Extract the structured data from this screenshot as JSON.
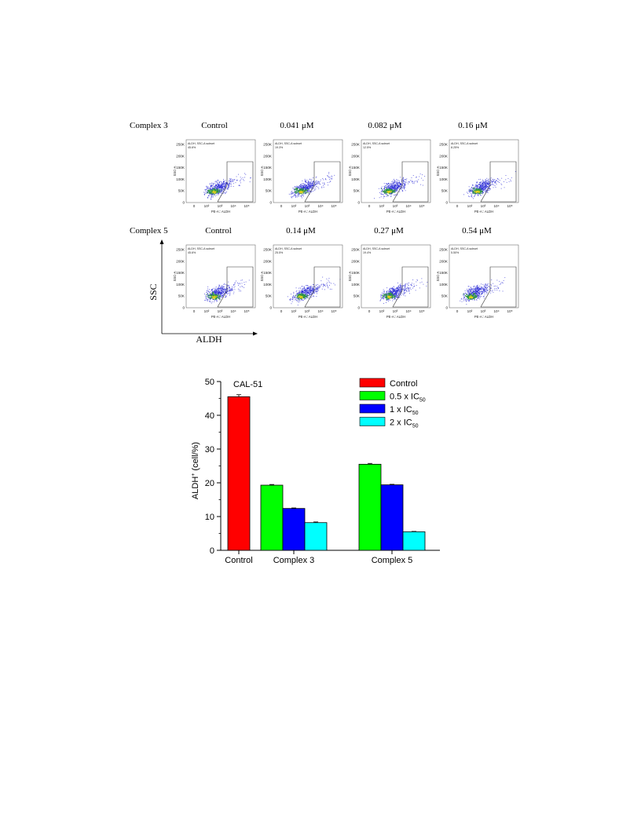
{
  "flow": {
    "rows": [
      {
        "label": "Complex 3",
        "panels": [
          {
            "title": "Control",
            "gate_label": "ALDH, SSC-A subset",
            "gate_pct": "45.6%"
          },
          {
            "title": "0.041 μM",
            "gate_label": "ALDH, SSC-A subset",
            "gate_pct": "19.3%"
          },
          {
            "title": "0.082 μM",
            "gate_label": "ALDH, SSC-A subset",
            "gate_pct": "12.5%"
          },
          {
            "title": "0.16 μM",
            "gate_label": "ALDH, SSC-A subset",
            "gate_pct": "8.25%"
          }
        ]
      },
      {
        "label": "Complex 5",
        "panels": [
          {
            "title": "Control",
            "gate_label": "ALDH, SSC-A subset",
            "gate_pct": "45.6%"
          },
          {
            "title": "0.14 μM",
            "gate_label": "ALDH, SSC-A subset",
            "gate_pct": "25.5%"
          },
          {
            "title": "0.27 μM",
            "gate_label": "ALDH, SSC-A subset",
            "gate_pct": "19.4%"
          },
          {
            "title": "0.54 μM",
            "gate_label": "ALDH, SSC-A subset",
            "gate_pct": "5.50%"
          }
        ]
      }
    ],
    "panel_xlabel": "PE-A:: ALDH",
    "panel_ylabel": "SSC-A",
    "y_ticks": [
      "250K",
      "200K",
      "150K",
      "100K",
      "50K",
      "0"
    ],
    "x_ticks": [
      "0",
      "10²",
      "10³",
      "10⁴",
      "10⁵"
    ],
    "global_ylabel": "SSC",
    "global_xlabel": "ALDH",
    "colors": {
      "dots": "#2b2bd6",
      "core": "#2e9b3a",
      "hot": "#e6d21e",
      "gate": "#333333"
    }
  },
  "chart_data": {
    "type": "bar",
    "title": "CAL-51",
    "ylabel": "ALDH",
    "ylabel_sup": "+",
    "ylabel_rest": " (cell/%)",
    "ylim": [
      0,
      50
    ],
    "yticks": [
      0,
      10,
      20,
      30,
      40,
      50
    ],
    "categories": [
      "Control",
      "Complex 3",
      "Complex 5"
    ],
    "groups": [
      {
        "category": "Control",
        "bars": [
          {
            "series": "Control",
            "value": 45.5,
            "err": 0.6
          }
        ]
      },
      {
        "category": "Complex 3",
        "bars": [
          {
            "series": "0.5 x IC50",
            "value": 19.3,
            "err": 0.2
          },
          {
            "series": "1 x IC50",
            "value": 12.4,
            "err": 0.15
          },
          {
            "series": "2 x IC50",
            "value": 8.2,
            "err": 0.2
          }
        ]
      },
      {
        "category": "Complex 5",
        "bars": [
          {
            "series": "0.5 x IC50",
            "value": 25.5,
            "err": 0.25
          },
          {
            "series": "1 x IC50",
            "value": 19.4,
            "err": 0.15
          },
          {
            "series": "2 x IC50",
            "value": 5.5,
            "err": 0.1
          }
        ]
      }
    ],
    "legend": {
      "placement": "top-right",
      "items": [
        {
          "name": "Control",
          "label": "Control",
          "sub": "",
          "color": "#ff0000"
        },
        {
          "name": "0.5 x IC50",
          "label": "0.5 x IC",
          "sub": "50",
          "color": "#00ff00"
        },
        {
          "name": "1 x IC50",
          "label": "1 x IC",
          "sub": "50",
          "color": "#0000ff"
        },
        {
          "name": "2 x IC50",
          "label": "2 x IC",
          "sub": "50",
          "color": "#00ffff"
        }
      ]
    }
  }
}
